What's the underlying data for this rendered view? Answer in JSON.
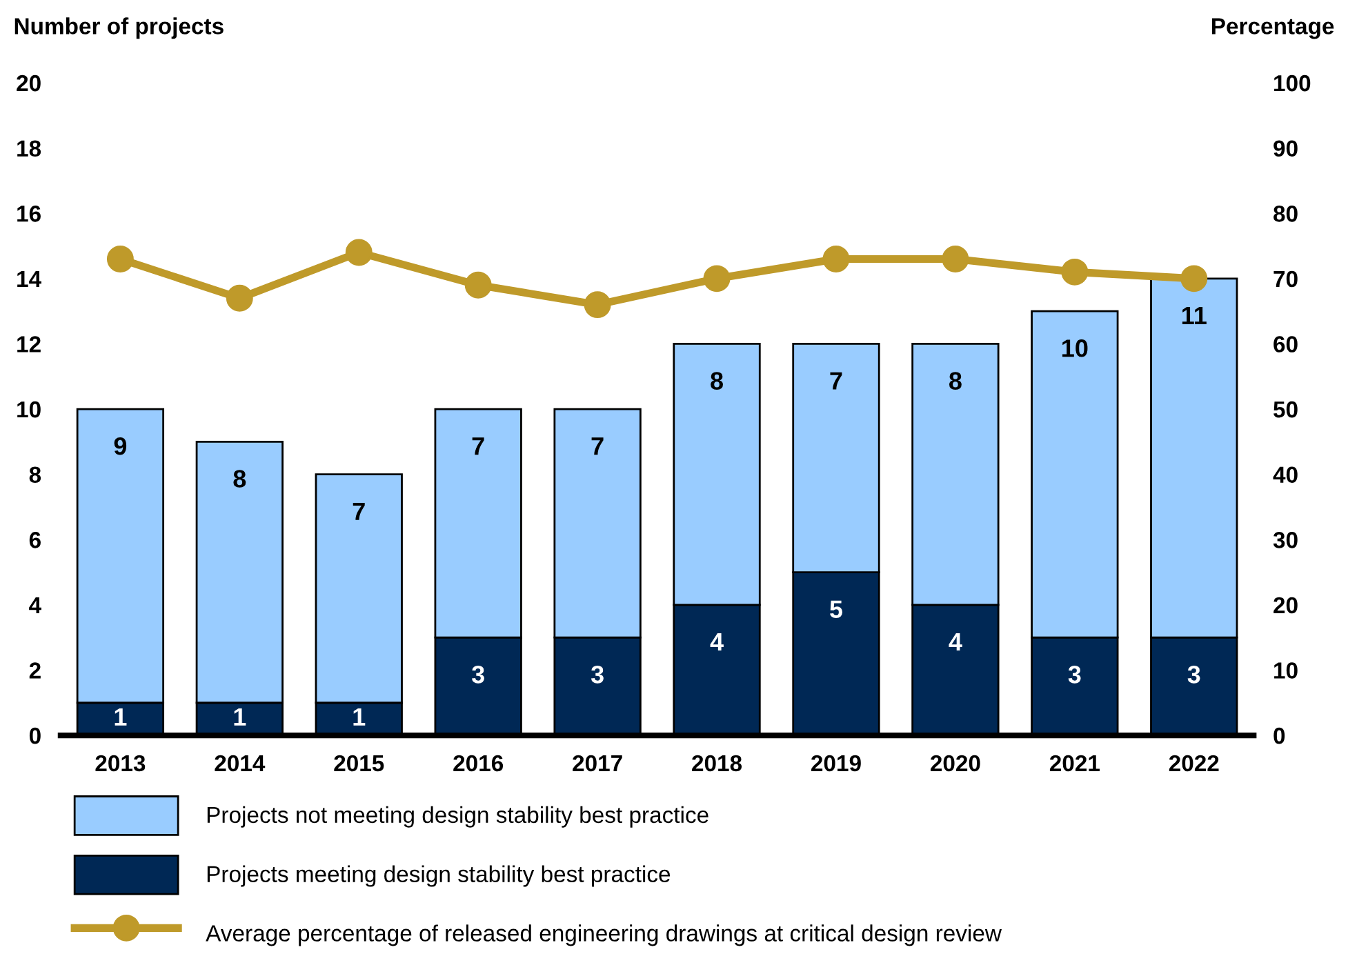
{
  "chart_data": {
    "type": "bar",
    "stacked": true,
    "ylabel": "Number of projects",
    "y2label": "Percentage",
    "categories": [
      "2013",
      "2014",
      "2015",
      "2016",
      "2017",
      "2018",
      "2019",
      "2020",
      "2021",
      "2022"
    ],
    "series": [
      {
        "name": "Projects meeting design stability best practice",
        "color": "#002855",
        "values": [
          1,
          1,
          1,
          3,
          3,
          4,
          5,
          4,
          3,
          3
        ],
        "value_labels": [
          "1",
          "1",
          "1",
          "3",
          "3",
          "4",
          "5",
          "4",
          "3",
          "3"
        ]
      },
      {
        "name": "Projects not meeting design stability best practice",
        "color": "#99ccff",
        "values": [
          9,
          8,
          7,
          7,
          7,
          8,
          7,
          8,
          10,
          11
        ],
        "value_labels": [
          "9",
          "8",
          "7",
          "7",
          "7",
          "8",
          "7",
          "8",
          "10",
          "11"
        ]
      },
      {
        "name": "Average percentage of released engineering drawings at critical design review",
        "type": "line",
        "axis": "y2",
        "color": "#bf9a2a",
        "marker": "circle",
        "values": [
          73,
          67,
          74,
          69,
          66,
          70,
          73,
          73,
          71,
          70
        ]
      }
    ],
    "ylim": [
      0,
      20
    ],
    "yticks": [
      0,
      2,
      4,
      6,
      8,
      10,
      12,
      14,
      16,
      18,
      20
    ],
    "y2lim": [
      0,
      100
    ],
    "y2ticks": [
      0,
      10,
      20,
      30,
      40,
      50,
      60,
      70,
      80,
      90,
      100
    ],
    "grid": false,
    "legend": "bottom"
  }
}
